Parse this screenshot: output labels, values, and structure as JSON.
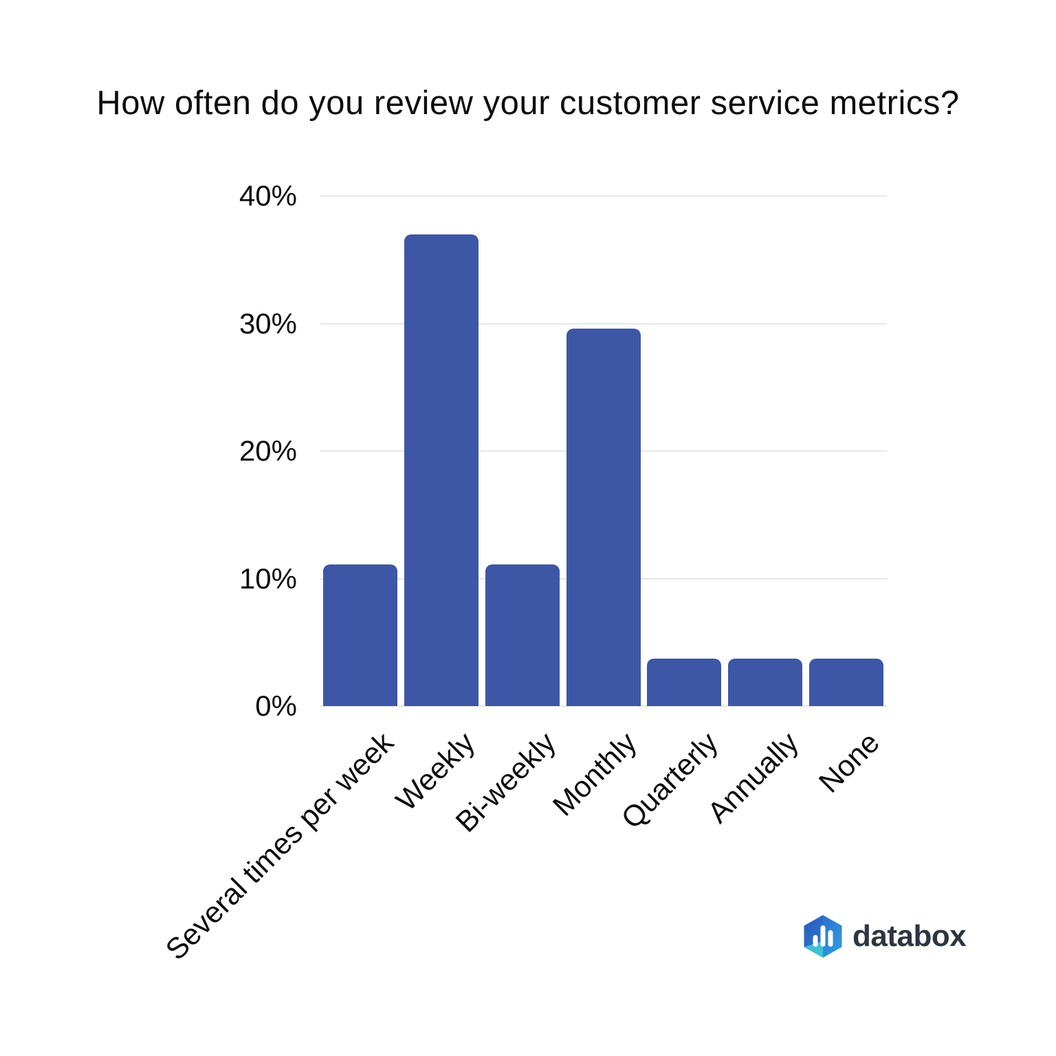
{
  "chart_data": {
    "type": "bar",
    "title": "How often do you review your customer service metrics?",
    "categories": [
      "Several times per week",
      "Weekly",
      "Bi-weekly",
      "Monthly",
      "Quarterly",
      "Annually",
      "None"
    ],
    "values": [
      11.1,
      37.0,
      11.1,
      29.6,
      3.7,
      3.7,
      3.7
    ],
    "unit": "%",
    "xlabel": "",
    "ylabel": "",
    "ylim": [
      0,
      40
    ],
    "yticks": [
      "0%",
      "10%",
      "20%",
      "30%",
      "40%"
    ],
    "ytick_values": [
      0,
      10,
      20,
      30,
      40
    ],
    "grid": true,
    "legend_position": "none",
    "bar_color": "#3d57a6",
    "gridline_color": "#e6e6e6",
    "text_color": "#0d0d0d",
    "x_label_rotation_deg": -45
  },
  "branding": {
    "name": "databox",
    "icon": "databox-hexagon-barchart-icon",
    "wordmark_color": "#2e3540",
    "icon_colors": {
      "blue_dark": "#2b5fc4",
      "blue_light": "#2f9be0",
      "teal": "#3fc9d5",
      "bars": "#ffffff"
    }
  }
}
